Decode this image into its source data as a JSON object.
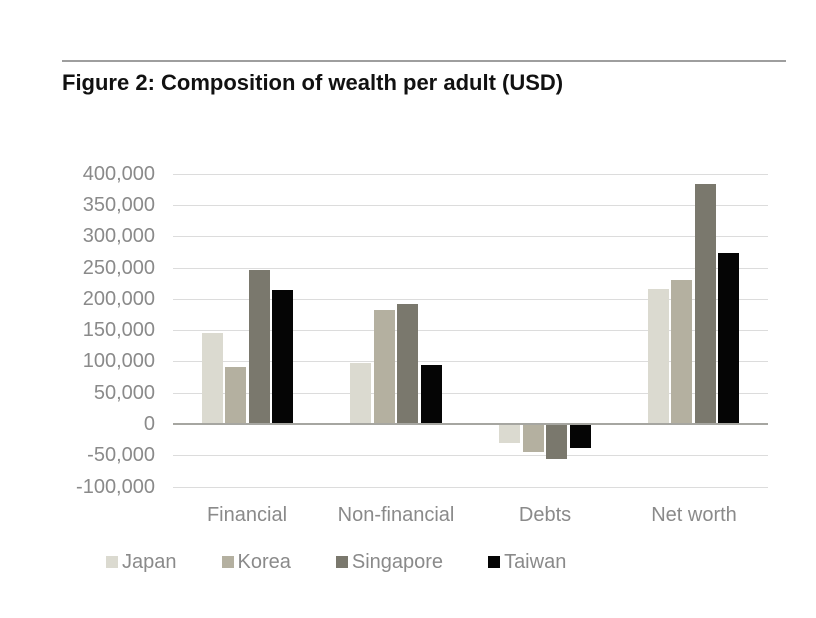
{
  "figure_title": "Figure 2: Composition of wealth per adult (USD)",
  "colors": {
    "japan": "#dbdad0",
    "korea": "#b4b0a0",
    "singapore": "#7a786d",
    "taiwan": "#050505",
    "gridline": "#dcdcdc",
    "zero_axis": "#a6a6a1",
    "tick_text": "#8a8a8a",
    "title_text": "#111111",
    "rule": "#9e9e9e"
  },
  "chart_data": {
    "type": "bar",
    "title": "Figure 2: Composition of wealth per adult (USD)",
    "xlabel": "",
    "ylabel": "",
    "categories": [
      "Financial",
      "Non-financial",
      "Debts",
      "Net worth"
    ],
    "series": [
      {
        "name": "Japan",
        "color": "#dbdad0",
        "values": [
          146000,
          97000,
          -28000,
          215000
        ]
      },
      {
        "name": "Korea",
        "color": "#b4b0a0",
        "values": [
          91000,
          182000,
          -43000,
          230000
        ]
      },
      {
        "name": "Singapore",
        "color": "#7a786d",
        "values": [
          246000,
          192000,
          -55000,
          383000
        ]
      },
      {
        "name": "Taiwan",
        "color": "#050505",
        "values": [
          214000,
          95000,
          -36000,
          273000
        ]
      }
    ],
    "ylim": [
      -100000,
      400000
    ],
    "ytick_step": 50000,
    "yticks": [
      "400,000",
      "350,000",
      "300,000",
      "250,000",
      "200,000",
      "150,000",
      "100,000",
      "50,000",
      "0",
      "-50,000",
      "-100,000"
    ],
    "grid": true,
    "legend_position": "bottom"
  }
}
